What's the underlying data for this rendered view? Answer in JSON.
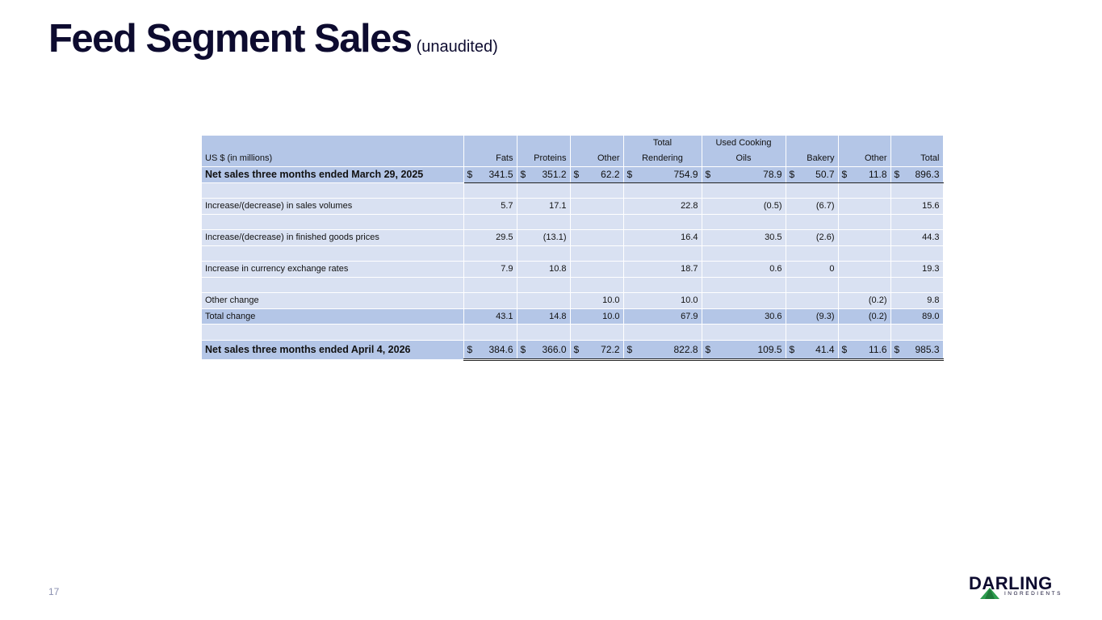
{
  "title": {
    "main": "Feed Segment Sales",
    "sub": "(unaudited)"
  },
  "table": {
    "header": {
      "label": "US $ (in millions)",
      "cols": [
        {
          "line1": "",
          "line2": "Fats"
        },
        {
          "line1": "",
          "line2": "Proteins"
        },
        {
          "line1": "",
          "line2": "Other"
        },
        {
          "line1": "Total",
          "line2": "Rendering"
        },
        {
          "line1": "Used Cooking",
          "line2": "Oils"
        },
        {
          "line1": "",
          "line2": "Bakery"
        },
        {
          "line1": "",
          "line2": "Other"
        },
        {
          "line1": "",
          "line2": "Total"
        }
      ]
    },
    "currency_symbol": "$",
    "rows": {
      "opening": {
        "label": "Net sales three months ended March 29, 2025",
        "values": [
          "341.5",
          "351.2",
          "62.2",
          "754.9",
          "78.9",
          "50.7",
          "11.8",
          "896.3"
        ]
      },
      "volumes": {
        "label": "Increase/(decrease) in sales volumes",
        "values": [
          "5.7",
          "17.1",
          "",
          "22.8",
          "(0.5)",
          "(6.7)",
          "",
          "15.6"
        ]
      },
      "prices": {
        "label": "Increase/(decrease) in finished goods prices",
        "values": [
          "29.5",
          "(13.1)",
          "",
          "16.4",
          "30.5",
          "(2.6)",
          "",
          "44.3"
        ]
      },
      "currency": {
        "label": "Increase in currency exchange rates",
        "values": [
          "7.9",
          "10.8",
          "",
          "18.7",
          "0.6",
          "0",
          "",
          "19.3"
        ]
      },
      "other": {
        "label": "Other change",
        "values": [
          "",
          "",
          "10.0",
          "10.0",
          "",
          "",
          "(0.2)",
          "9.8"
        ]
      },
      "total_change": {
        "label": "Total change",
        "values": [
          "43.1",
          "14.8",
          "10.0",
          "67.9",
          "30.6",
          "(9.3)",
          "(0.2)",
          "89.0"
        ]
      },
      "closing": {
        "label": "Net sales three months ended April 4, 2026",
        "values": [
          "384.6",
          "366.0",
          "72.2",
          "822.8",
          "109.5",
          "41.4",
          "11.6",
          "985.3"
        ]
      }
    }
  },
  "footer": {
    "page_number": "17",
    "logo": {
      "word": "DARLING",
      "tagline": "INGREDIENTS",
      "icon": "darling-logo-icon"
    }
  },
  "colors": {
    "header_fill": "#b4c6e7",
    "row_fill": "#d9e1f2",
    "title": "#0d0b2f",
    "logo_green": "#2e9e4f"
  }
}
